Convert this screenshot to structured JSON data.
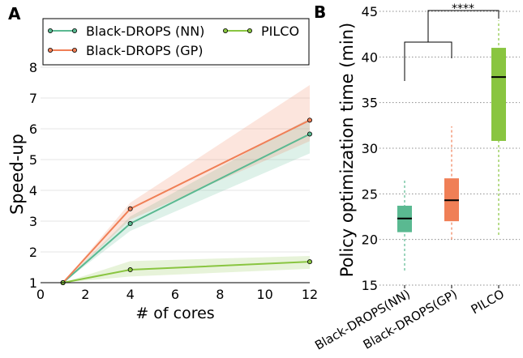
{
  "panels": {
    "a": "A",
    "b": "B"
  },
  "chart_data": [
    {
      "type": "line",
      "xlabel": "# of cores",
      "ylabel": "Speed-up",
      "xlim": [
        0,
        12
      ],
      "ylim": [
        1,
        8
      ],
      "x_ticks": [
        0,
        2,
        4,
        6,
        8,
        10,
        12
      ],
      "y_ticks": [
        1,
        2,
        3,
        4,
        5,
        6,
        7,
        8
      ],
      "grid": "horizontal",
      "legend_position": "top",
      "x": [
        1,
        4,
        12
      ],
      "series": [
        {
          "name": "Black-DROPS (NN)",
          "color": "#5ab991",
          "values": [
            1.0,
            2.92,
            5.83
          ],
          "lower": [
            1.0,
            2.68,
            5.2
          ],
          "upper": [
            1.0,
            3.15,
            6.35
          ]
        },
        {
          "name": "Black-DROPS (GP)",
          "color": "#f07f56",
          "values": [
            1.0,
            3.4,
            6.28
          ],
          "lower": [
            1.0,
            3.05,
            5.6
          ],
          "upper": [
            1.0,
            3.6,
            7.42
          ]
        },
        {
          "name": "PILCO",
          "color": "#89c540",
          "values": [
            1.0,
            1.42,
            1.68
          ],
          "lower": [
            1.0,
            1.2,
            1.45
          ],
          "upper": [
            1.0,
            1.7,
            1.87
          ]
        }
      ]
    },
    {
      "type": "box",
      "ylabel": "Policy optimization time (min)",
      "ylim": [
        15,
        45
      ],
      "y_ticks": [
        15,
        20,
        25,
        30,
        35,
        40,
        45
      ],
      "grid": "horizontal",
      "categories": [
        "Black-DROPS(NN)",
        "Black-DROPS(GP)",
        "PILCO"
      ],
      "boxes": [
        {
          "name": "Black-DROPS(NN)",
          "color": "#5ab991",
          "whisker_low": 16.6,
          "q1": 20.8,
          "median": 22.3,
          "q3": 23.7,
          "whisker_high": 26.5
        },
        {
          "name": "Black-DROPS(GP)",
          "color": "#f07f56",
          "whisker_low": 20.0,
          "q1": 22.0,
          "median": 24.3,
          "q3": 26.7,
          "whisker_high": 32.4
        },
        {
          "name": "PILCO",
          "color": "#89c540",
          "whisker_low": 20.5,
          "q1": 30.8,
          "median": 37.8,
          "q3": 41.0,
          "whisker_high": 44.0
        }
      ],
      "significance": "****"
    }
  ]
}
